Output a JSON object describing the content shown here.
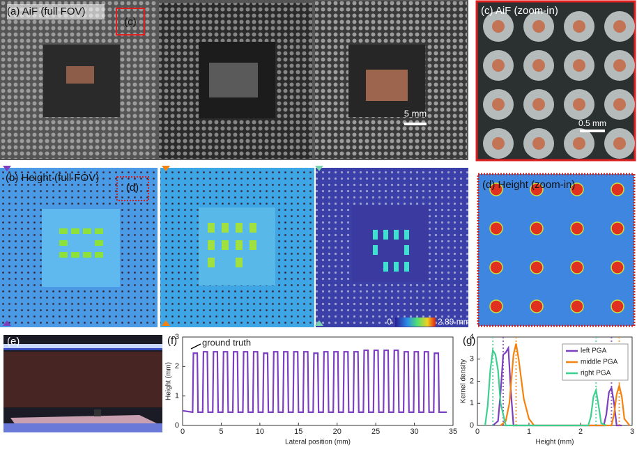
{
  "panels": {
    "a": "(a) AiF (full FOV)",
    "a_box": "(c)",
    "a_scale": "5 mm",
    "c": "(c) AiF (zoom-in)",
    "c_scale": "0.5 mm",
    "b": "(b) Height (full FOV)",
    "b_box": "(d)",
    "colorbar_min": "0",
    "colorbar_max": "2.89 mm",
    "d": "(d) Height (zoom-in)",
    "e": "(e)",
    "f": "(f)",
    "g": "(g)"
  },
  "chart_data": [
    {
      "type": "line",
      "annotation": "ground truth",
      "xlabel": "Lateral position (mm)",
      "ylabel": "Height (mm)",
      "color": "#7b3fbf",
      "xlim": [
        0,
        35
      ],
      "xticks": [
        0,
        5,
        10,
        15,
        20,
        25,
        30,
        35
      ],
      "ylim": [
        0,
        3
      ],
      "yticks": [
        0,
        1,
        2,
        3
      ],
      "x": [
        0,
        1.3,
        1.4,
        1.9,
        2.0,
        2.6,
        2.7,
        3.2,
        3.3,
        3.9,
        4.0,
        4.5,
        4.6,
        5.2,
        5.3,
        5.8,
        5.9,
        6.5,
        6.6,
        7.1,
        7.2,
        7.8,
        7.9,
        8.4,
        8.5,
        9.1,
        9.2,
        9.7,
        9.8,
        10.4,
        10.5,
        11.0,
        11.1,
        11.7,
        11.8,
        12.3,
        12.4,
        13.0,
        13.1,
        13.6,
        13.7,
        14.3,
        14.4,
        14.9,
        15.0,
        15.6,
        15.7,
        16.2,
        16.3,
        16.9,
        17.0,
        17.5,
        17.6,
        18.2,
        18.3,
        18.8,
        18.9,
        19.5,
        19.6,
        20.1,
        20.2,
        20.8,
        20.9,
        21.4,
        21.5,
        22.1,
        22.2,
        22.7,
        22.8,
        23.4,
        23.5,
        24.0,
        24.1,
        24.7,
        24.8,
        25.3,
        25.4,
        26.0,
        26.1,
        26.6,
        26.7,
        27.3,
        27.4,
        27.9,
        28.0,
        28.6,
        28.7,
        29.2,
        29.3,
        29.9,
        30.0,
        30.5,
        30.6,
        31.2,
        31.3,
        31.8,
        31.9,
        32.5,
        32.6,
        33.1,
        33.2,
        34.2
      ],
      "values": [
        0.5,
        0.45,
        2.45,
        2.45,
        0.45,
        0.45,
        2.5,
        2.5,
        0.45,
        0.45,
        2.5,
        2.5,
        0.45,
        0.45,
        2.5,
        2.5,
        0.45,
        0.45,
        2.5,
        2.5,
        0.45,
        0.45,
        2.5,
        2.5,
        0.45,
        0.45,
        2.5,
        2.5,
        0.45,
        0.45,
        2.45,
        2.45,
        0.45,
        0.45,
        2.5,
        2.5,
        0.45,
        0.45,
        2.5,
        2.5,
        0.45,
        0.45,
        2.5,
        2.5,
        0.45,
        0.45,
        2.5,
        2.5,
        0.45,
        0.45,
        2.45,
        2.45,
        0.45,
        0.45,
        2.5,
        2.5,
        0.45,
        0.45,
        2.5,
        2.5,
        0.45,
        0.45,
        2.5,
        2.5,
        0.45,
        0.45,
        2.5,
        2.5,
        0.45,
        0.45,
        2.55,
        2.55,
        0.45,
        0.45,
        2.55,
        2.55,
        0.45,
        0.45,
        2.55,
        2.55,
        0.45,
        0.45,
        2.55,
        2.55,
        0.45,
        0.45,
        2.5,
        2.5,
        0.45,
        0.45,
        2.5,
        2.5,
        0.45,
        0.45,
        2.5,
        2.5,
        0.45,
        0.45,
        2.45,
        2.45,
        0.45,
        0.45
      ]
    },
    {
      "type": "line",
      "xlabel": "Height (mm)",
      "ylabel": "Kernel density",
      "legend": "upper right",
      "xlim": [
        0,
        3
      ],
      "xticks": [
        0,
        1,
        2,
        3
      ],
      "ylim": [
        0,
        4
      ],
      "yticks": [
        0,
        1,
        2,
        3,
        4
      ],
      "series": [
        {
          "name": "left PGA",
          "color": "#7b3fbf",
          "ref_x": [
            0.5,
            2.6
          ],
          "x": [
            0.3,
            0.4,
            0.45,
            0.5,
            0.55,
            0.6,
            0.65,
            0.7,
            2.45,
            2.5,
            2.55,
            2.6,
            2.65,
            2.7,
            2.8
          ],
          "values": [
            0,
            0.2,
            1.5,
            3.2,
            3.3,
            3.5,
            1.5,
            0,
            0,
            0.5,
            1.5,
            1.7,
            1.0,
            0,
            0
          ]
        },
        {
          "name": "middle PGA",
          "color": "#f5820d",
          "ref_x": [
            0.75,
            2.75
          ],
          "x": [
            0.45,
            0.55,
            0.62,
            0.7,
            0.75,
            0.8,
            0.9,
            1.0,
            1.1,
            2.6,
            2.65,
            2.7,
            2.75,
            2.8,
            2.85,
            2.95
          ],
          "values": [
            0,
            0.2,
            1.0,
            3.2,
            3.7,
            3.0,
            1.2,
            0.3,
            0,
            0,
            0.5,
            1.4,
            1.8,
            1.3,
            0.3,
            0
          ]
        },
        {
          "name": "right PGA",
          "color": "#3dcf8e",
          "ref_x": [
            0.3,
            2.3
          ],
          "x": [
            0.15,
            0.2,
            0.25,
            0.3,
            0.35,
            0.4,
            0.45,
            0.55,
            2.15,
            2.2,
            2.25,
            2.3,
            2.35,
            2.4,
            2.5
          ],
          "values": [
            0,
            0.9,
            2.5,
            3.4,
            3.2,
            2.5,
            1.0,
            0,
            0,
            0.4,
            1.3,
            1.6,
            0.9,
            0.1,
            0
          ]
        }
      ]
    }
  ]
}
